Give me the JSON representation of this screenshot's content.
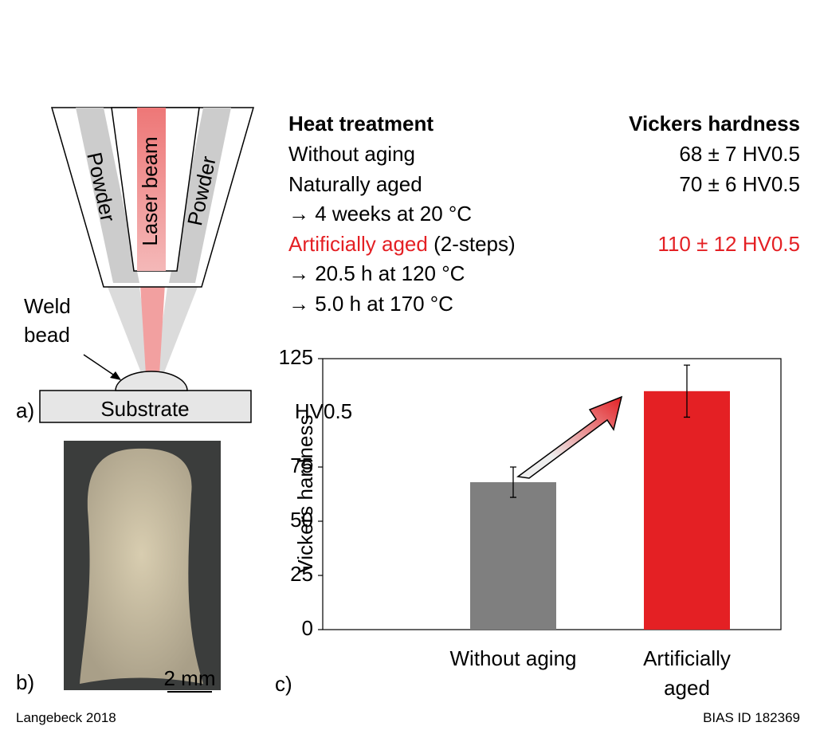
{
  "diagram": {
    "label": "a)",
    "powder_left": "Powder",
    "laser": "Laser beam",
    "powder_right": "Powder",
    "weld_bead": "Weld bead",
    "substrate": "Substrate"
  },
  "micrograph": {
    "label": "b)",
    "scale_bar": "2 mm"
  },
  "table": {
    "header": [
      "Heat treatment",
      "Vickers hardness"
    ],
    "rows": [
      {
        "label": "Without aging",
        "value": "68 ± 7 HV0.5"
      },
      {
        "label": "Naturally aged",
        "value": "70 ± 6 HV0.5"
      },
      {
        "label": "→ 4 weeks at 20 °C"
      },
      {
        "label": "Artificially aged",
        "note": "(2-steps)",
        "value": "110 ± 12 HV0.5",
        "color": "#e42024"
      },
      {
        "label": "→ 20.5 h at 120 °C"
      },
      {
        "label": "→ 5.0 h at 170 °C"
      }
    ]
  },
  "chart_data": {
    "type": "bar",
    "label": "c)",
    "y_label": "Vickers hardness",
    "y_unit": "HV0.5",
    "categories": [
      "Without aging",
      "Artificially aged"
    ],
    "values": [
      68,
      110
    ],
    "errors": [
      7,
      12
    ],
    "colors": [
      "#7f7f7f",
      "#e42024"
    ],
    "ylim": [
      0,
      125
    ],
    "yticks": [
      0,
      25,
      50,
      75,
      125
    ]
  },
  "footer": {
    "left": "Langebeck 2018",
    "right": "BIAS ID 182369"
  }
}
